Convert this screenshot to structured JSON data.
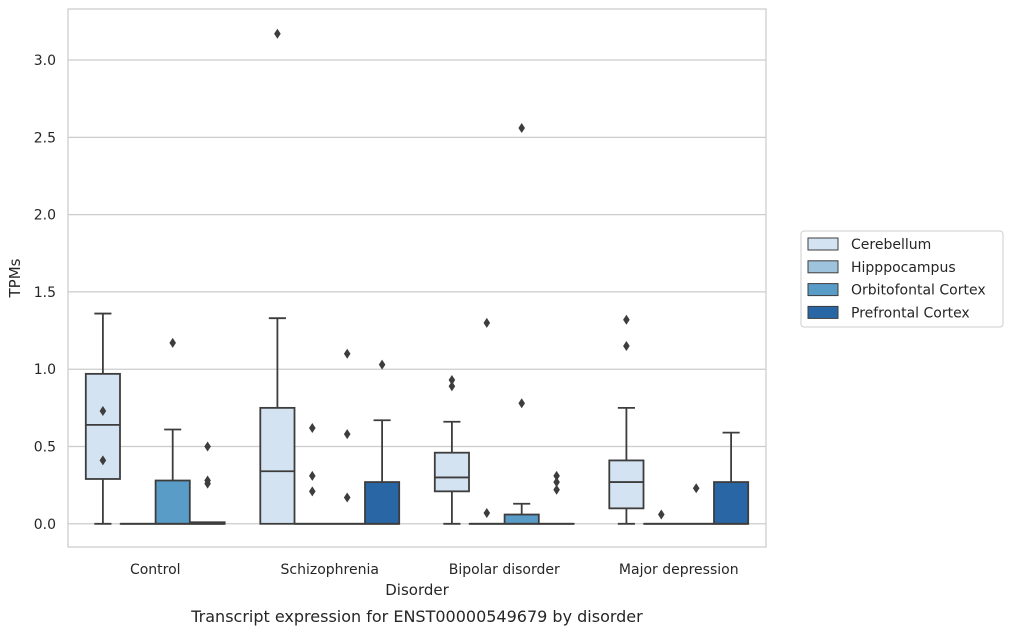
{
  "chart_data": {
    "type": "box",
    "caption": "Transcript expression for ENST00000549679 by disorder",
    "xlabel": "Disorder",
    "ylabel": "TPMs",
    "ylim": [
      -0.15,
      3.33
    ],
    "yticks": [
      0.0,
      0.5,
      1.0,
      1.5,
      2.0,
      2.5,
      3.0
    ],
    "ytick_labels": [
      "0.0",
      "0.5",
      "1.0",
      "1.5",
      "2.0",
      "2.5",
      "3.0"
    ],
    "grid": "horizontal",
    "legend_position": "right",
    "categories": [
      "Control",
      "Schizophrenia",
      "Bipolar disorder",
      "Major depression"
    ],
    "series": [
      {
        "name": "Cerebellum",
        "color": "#d4e3f2",
        "boxes": [
          {
            "whisker_low": 0.0,
            "q1": 0.29,
            "median": 0.64,
            "q3": 0.97,
            "whisker_high": 1.36,
            "outliers": [
              0.73,
              0.41
            ]
          },
          {
            "whisker_low": 0.0,
            "q1": 0.0,
            "median": 0.34,
            "q3": 0.75,
            "whisker_high": 1.33,
            "outliers": [
              3.17
            ]
          },
          {
            "whisker_low": 0.0,
            "q1": 0.21,
            "median": 0.3,
            "q3": 0.46,
            "whisker_high": 0.66,
            "outliers": [
              0.93,
              0.89
            ]
          },
          {
            "whisker_low": 0.0,
            "q1": 0.1,
            "median": 0.27,
            "q3": 0.41,
            "whisker_high": 0.75,
            "outliers": [
              1.32,
              1.15
            ]
          }
        ]
      },
      {
        "name": "Hipppocampus",
        "color": "#9dc3dd",
        "boxes": [
          {
            "whisker_low": 0.0,
            "q1": 0.0,
            "median": 0.0,
            "q3": 0.0,
            "whisker_high": 0.0,
            "outliers": []
          },
          {
            "whisker_low": 0.0,
            "q1": 0.0,
            "median": 0.0,
            "q3": 0.0,
            "whisker_high": 0.0,
            "outliers": [
              0.62,
              0.31,
              0.21
            ]
          },
          {
            "whisker_low": 0.0,
            "q1": 0.0,
            "median": 0.0,
            "q3": 0.0,
            "whisker_high": 0.0,
            "outliers": [
              1.3,
              0.07
            ]
          },
          {
            "whisker_low": 0.0,
            "q1": 0.0,
            "median": 0.0,
            "q3": 0.0,
            "whisker_high": 0.0,
            "outliers": [
              0.06
            ]
          }
        ]
      },
      {
        "name": "Orbitofontal Cortex",
        "color": "#5a9cc8",
        "boxes": [
          {
            "whisker_low": 0.0,
            "q1": 0.0,
            "median": 0.0,
            "q3": 0.28,
            "whisker_high": 0.61,
            "outliers": [
              1.17
            ]
          },
          {
            "whisker_low": 0.0,
            "q1": 0.0,
            "median": 0.0,
            "q3": 0.0,
            "whisker_high": 0.0,
            "outliers": [
              1.1,
              0.58,
              0.17
            ]
          },
          {
            "whisker_low": 0.0,
            "q1": 0.0,
            "median": 0.0,
            "q3": 0.06,
            "whisker_high": 0.13,
            "outliers": [
              2.56,
              0.78
            ]
          },
          {
            "whisker_low": 0.0,
            "q1": 0.0,
            "median": 0.0,
            "q3": 0.0,
            "whisker_high": 0.0,
            "outliers": [
              0.23
            ]
          }
        ]
      },
      {
        "name": "Prefrontal Cortex",
        "color": "#2866a6",
        "boxes": [
          {
            "whisker_low": 0.0,
            "q1": 0.0,
            "median": 0.0,
            "q3": 0.01,
            "whisker_high": 0.01,
            "outliers": [
              0.5,
              0.28,
              0.26
            ]
          },
          {
            "whisker_low": 0.0,
            "q1": 0.0,
            "median": 0.0,
            "q3": 0.27,
            "whisker_high": 0.67,
            "outliers": [
              1.03
            ]
          },
          {
            "whisker_low": 0.0,
            "q1": 0.0,
            "median": 0.0,
            "q3": 0.0,
            "whisker_high": 0.0,
            "outliers": [
              0.31,
              0.27,
              0.22
            ]
          },
          {
            "whisker_low": 0.0,
            "q1": 0.0,
            "median": 0.0,
            "q3": 0.27,
            "whisker_high": 0.59,
            "outliers": []
          }
        ]
      }
    ]
  }
}
